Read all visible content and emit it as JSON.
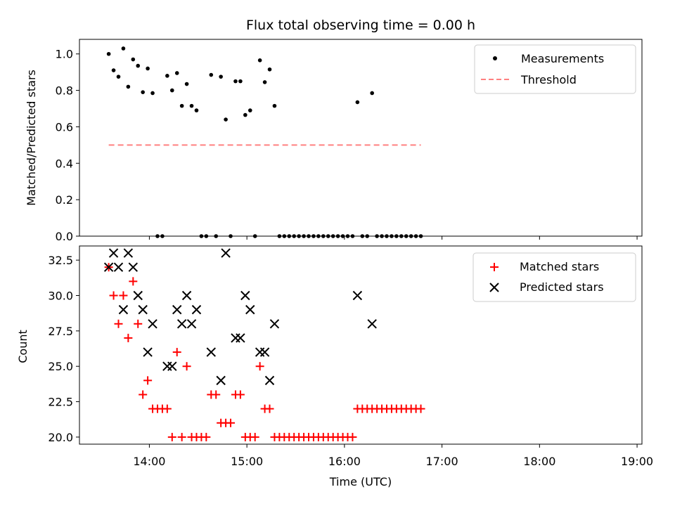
{
  "chart_data": {
    "title": "Flux total observing time = 0.00 h",
    "x_axis": {
      "label": "Time (UTC)",
      "type": "time",
      "range": [
        "13:17",
        "19:03"
      ],
      "ticks": [
        "14:00",
        "15:00",
        "16:00",
        "17:00",
        "18:00",
        "19:00"
      ]
    },
    "panels": [
      {
        "type": "scatter",
        "ylabel": "Matched/Predicted stars",
        "ylim": [
          0,
          1.08
        ],
        "yticks": [
          "0.0",
          "0.2",
          "0.4",
          "0.6",
          "0.8",
          "1.0"
        ],
        "legend": {
          "position": "top-right",
          "entries": [
            "Measurements",
            "Threshold"
          ]
        },
        "series": [
          {
            "name": "Measurements",
            "color": "#000000",
            "marker": "dot",
            "points": [
              [
                "13:35",
                1.0
              ],
              [
                "13:38",
                0.91
              ],
              [
                "13:41",
                0.875
              ],
              [
                "13:44",
                1.03
              ],
              [
                "13:47",
                0.82
              ],
              [
                "13:50",
                0.97
              ],
              [
                "13:53",
                0.935
              ],
              [
                "13:56",
                0.79
              ],
              [
                "13:59",
                0.92
              ],
              [
                "14:02",
                0.785
              ],
              [
                "14:05",
                0.0
              ],
              [
                "14:08",
                0.0
              ],
              [
                "14:11",
                0.88
              ],
              [
                "14:14",
                0.8
              ],
              [
                "14:17",
                0.895
              ],
              [
                "14:20",
                0.715
              ],
              [
                "14:23",
                0.835
              ],
              [
                "14:26",
                0.715
              ],
              [
                "14:29",
                0.69
              ],
              [
                "14:32",
                0.0
              ],
              [
                "14:35",
                0.0
              ],
              [
                "14:38",
                0.885
              ],
              [
                "14:41",
                0.0
              ],
              [
                "14:44",
                0.875
              ],
              [
                "14:47",
                0.64
              ],
              [
                "14:50",
                0.0
              ],
              [
                "14:53",
                0.85
              ],
              [
                "14:56",
                0.85
              ],
              [
                "14:59",
                0.665
              ],
              [
                "15:02",
                0.69
              ],
              [
                "15:05",
                0.0
              ],
              [
                "15:08",
                0.965
              ],
              [
                "15:11",
                0.845
              ],
              [
                "15:14",
                0.915
              ],
              [
                "15:17",
                0.715
              ],
              [
                "15:20",
                0.0
              ],
              [
                "15:23",
                0.0
              ],
              [
                "15:26",
                0.0
              ],
              [
                "15:29",
                0.0
              ],
              [
                "15:32",
                0.0
              ],
              [
                "15:35",
                0.0
              ],
              [
                "15:38",
                0.0
              ],
              [
                "15:41",
                0.0
              ],
              [
                "15:44",
                0.0
              ],
              [
                "15:47",
                0.0
              ],
              [
                "15:50",
                0.0
              ],
              [
                "15:53",
                0.0
              ],
              [
                "15:56",
                0.0
              ],
              [
                "15:59",
                0.0
              ],
              [
                "16:02",
                0.0
              ],
              [
                "16:05",
                0.0
              ],
              [
                "16:08",
                0.735
              ],
              [
                "16:11",
                0.0
              ],
              [
                "16:14",
                0.0
              ],
              [
                "16:17",
                0.785
              ],
              [
                "16:20",
                0.0
              ],
              [
                "16:23",
                0.0
              ],
              [
                "16:26",
                0.0
              ],
              [
                "16:29",
                0.0
              ],
              [
                "16:32",
                0.0
              ],
              [
                "16:35",
                0.0
              ],
              [
                "16:38",
                0.0
              ],
              [
                "16:41",
                0.0
              ],
              [
                "16:44",
                0.0
              ],
              [
                "16:47",
                0.0
              ]
            ]
          },
          {
            "name": "Threshold",
            "color": "#ff8080",
            "style": "dashed",
            "points": [
              [
                "13:35",
                0.5
              ],
              [
                "16:47",
                0.5
              ]
            ]
          }
        ]
      },
      {
        "type": "scatter",
        "ylabel": "Count",
        "ylim": [
          19.5,
          33.5
        ],
        "yticks": [
          "20.0",
          "22.5",
          "25.0",
          "27.5",
          "30.0",
          "32.5"
        ],
        "legend": {
          "position": "top-right",
          "entries": [
            "Matched stars",
            "Predicted stars"
          ]
        },
        "series": [
          {
            "name": "Matched stars",
            "color": "#ff0000",
            "marker": "plus",
            "points": [
              [
                "13:35",
                32
              ],
              [
                "13:38",
                30
              ],
              [
                "13:41",
                28
              ],
              [
                "13:44",
                30
              ],
              [
                "13:47",
                27
              ],
              [
                "13:50",
                31
              ],
              [
                "13:53",
                28
              ],
              [
                "13:56",
                23
              ],
              [
                "13:59",
                24
              ],
              [
                "14:02",
                22
              ],
              [
                "14:05",
                22
              ],
              [
                "14:08",
                22
              ],
              [
                "14:11",
                22
              ],
              [
                "14:14",
                20
              ],
              [
                "14:17",
                26
              ],
              [
                "14:20",
                20
              ],
              [
                "14:23",
                25
              ],
              [
                "14:26",
                20
              ],
              [
                "14:29",
                20
              ],
              [
                "14:32",
                20
              ],
              [
                "14:35",
                20
              ],
              [
                "14:38",
                23
              ],
              [
                "14:41",
                23
              ],
              [
                "14:44",
                21
              ],
              [
                "14:47",
                21
              ],
              [
                "14:50",
                21
              ],
              [
                "14:53",
                23
              ],
              [
                "14:56",
                23
              ],
              [
                "14:59",
                20
              ],
              [
                "15:02",
                20
              ],
              [
                "15:05",
                20
              ],
              [
                "15:08",
                25
              ],
              [
                "15:11",
                22
              ],
              [
                "15:14",
                22
              ],
              [
                "15:17",
                20
              ],
              [
                "15:20",
                20
              ],
              [
                "15:23",
                20
              ],
              [
                "15:26",
                20
              ],
              [
                "15:29",
                20
              ],
              [
                "15:32",
                20
              ],
              [
                "15:35",
                20
              ],
              [
                "15:38",
                20
              ],
              [
                "15:41",
                20
              ],
              [
                "15:44",
                20
              ],
              [
                "15:47",
                20
              ],
              [
                "15:50",
                20
              ],
              [
                "15:53",
                20
              ],
              [
                "15:56",
                20
              ],
              [
                "15:59",
                20
              ],
              [
                "16:02",
                20
              ],
              [
                "16:05",
                20
              ],
              [
                "16:08",
                22
              ],
              [
                "16:11",
                22
              ],
              [
                "16:14",
                22
              ],
              [
                "16:17",
                22
              ],
              [
                "16:20",
                22
              ],
              [
                "16:23",
                22
              ],
              [
                "16:26",
                22
              ],
              [
                "16:29",
                22
              ],
              [
                "16:32",
                22
              ],
              [
                "16:35",
                22
              ],
              [
                "16:38",
                22
              ],
              [
                "16:41",
                22
              ],
              [
                "16:44",
                22
              ],
              [
                "16:47",
                22
              ]
            ]
          },
          {
            "name": "Predicted stars",
            "color": "#000000",
            "marker": "x",
            "points": [
              [
                "13:35",
                32
              ],
              [
                "13:38",
                33
              ],
              [
                "13:41",
                32
              ],
              [
                "13:44",
                29
              ],
              [
                "13:47",
                33
              ],
              [
                "13:50",
                32
              ],
              [
                "13:53",
                30
              ],
              [
                "13:56",
                29
              ],
              [
                "13:59",
                26
              ],
              [
                "14:02",
                28
              ],
              [
                "14:11",
                25
              ],
              [
                "14:14",
                25
              ],
              [
                "14:17",
                29
              ],
              [
                "14:20",
                28
              ],
              [
                "14:23",
                30
              ],
              [
                "14:26",
                28
              ],
              [
                "14:29",
                29
              ],
              [
                "14:38",
                26
              ],
              [
                "14:44",
                24
              ],
              [
                "14:47",
                33
              ],
              [
                "14:53",
                27
              ],
              [
                "14:56",
                27
              ],
              [
                "14:59",
                30
              ],
              [
                "15:02",
                29
              ],
              [
                "15:08",
                26
              ],
              [
                "15:11",
                26
              ],
              [
                "15:14",
                24
              ],
              [
                "15:17",
                28
              ],
              [
                "16:08",
                30
              ],
              [
                "16:17",
                28
              ]
            ]
          }
        ]
      }
    ]
  }
}
